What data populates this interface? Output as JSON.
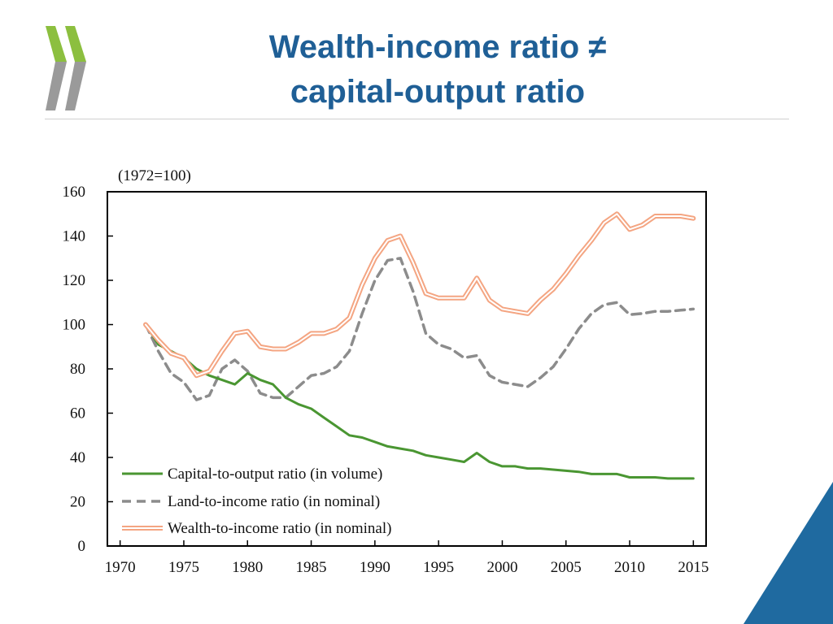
{
  "slide": {
    "title_line1": "Wealth-income ratio ≠",
    "title_line2": "capital-output ratio"
  },
  "colors": {
    "title": "#1f5f96",
    "logo_green": "#8cbf3f",
    "logo_grey": "#9a9a9a",
    "corner_blue": "#1f6aa0",
    "capital_series": "#4a9632",
    "land_series": "#8c8c8c",
    "wealth_series": "#f4a582"
  },
  "chart_data": {
    "type": "line",
    "annotation": "(1972=100)",
    "xlim": [
      1969,
      2016
    ],
    "ylim": [
      0,
      160
    ],
    "x_ticks": [
      1970,
      1975,
      1980,
      1985,
      1990,
      1995,
      2000,
      2005,
      2010,
      2015
    ],
    "y_ticks": [
      0,
      20,
      40,
      60,
      80,
      100,
      120,
      140,
      160
    ],
    "legend_position": "bottom-left",
    "grid": false,
    "series": [
      {
        "name": "Capital-to-output ratio (in volume)",
        "style": "solid",
        "x": [
          1972,
          1973,
          1974,
          1975,
          1976,
          1977,
          1978,
          1979,
          1980,
          1981,
          1982,
          1983,
          1984,
          1985,
          1986,
          1987,
          1988,
          1989,
          1990,
          1991,
          1992,
          1993,
          1994,
          1995,
          1996,
          1997,
          1998,
          1999,
          2000,
          2001,
          2002,
          2003,
          2004,
          2005,
          2006,
          2007,
          2008,
          2009,
          2010,
          2011,
          2012,
          2013,
          2014,
          2015
        ],
        "y": [
          100,
          91,
          88,
          85,
          80,
          77,
          75,
          73,
          78,
          75,
          73,
          67,
          64,
          62,
          58,
          54,
          50,
          49,
          47,
          45,
          44,
          43,
          41,
          40,
          39,
          38,
          42,
          38,
          36,
          36,
          35,
          35,
          34.5,
          34,
          33.5,
          32.5,
          32.5,
          32.5,
          31,
          31,
          31,
          30.5,
          30.5,
          30.5
        ]
      },
      {
        "name": "Land-to-income ratio (in nominal)",
        "style": "dashed",
        "x": [
          1972,
          1973,
          1974,
          1975,
          1976,
          1977,
          1978,
          1979,
          1980,
          1981,
          1982,
          1983,
          1984,
          1985,
          1986,
          1987,
          1988,
          1989,
          1990,
          1991,
          1992,
          1993,
          1994,
          1995,
          1996,
          1997,
          1998,
          1999,
          2000,
          2001,
          2002,
          2003,
          2004,
          2005,
          2006,
          2007,
          2008,
          2009,
          2010,
          2011,
          2012,
          2013,
          2014,
          2015
        ],
        "y": [
          100,
          88,
          78,
          74,
          66,
          68,
          80,
          84,
          79,
          69,
          67,
          67,
          72,
          77,
          78,
          81,
          88,
          105,
          120,
          129,
          130,
          115,
          96,
          91,
          89,
          85,
          86,
          77,
          74,
          73,
          72,
          76,
          81,
          89,
          98,
          105,
          109,
          110,
          104.5,
          105,
          106,
          106,
          106.5,
          107
        ]
      },
      {
        "name": "Wealth-to-income ratio (in nominal)",
        "style": "double",
        "x": [
          1972,
          1973,
          1974,
          1975,
          1976,
          1977,
          1978,
          1979,
          1980,
          1981,
          1982,
          1983,
          1984,
          1985,
          1986,
          1987,
          1988,
          1989,
          1990,
          1991,
          1992,
          1993,
          1994,
          1995,
          1996,
          1997,
          1998,
          1999,
          2000,
          2001,
          2002,
          2003,
          2004,
          2005,
          2006,
          2007,
          2008,
          2009,
          2010,
          2011,
          2012,
          2013,
          2014,
          2015
        ],
        "y": [
          100,
          93,
          87,
          85,
          77,
          79,
          88,
          96,
          97,
          90,
          89,
          89,
          92,
          96,
          96,
          98,
          103,
          118,
          130,
          138,
          140,
          128,
          114,
          112,
          112,
          112,
          121,
          111,
          107,
          106,
          105,
          111,
          116,
          123,
          131,
          138,
          146,
          150,
          143,
          145,
          149,
          149,
          149,
          148
        ]
      }
    ]
  }
}
